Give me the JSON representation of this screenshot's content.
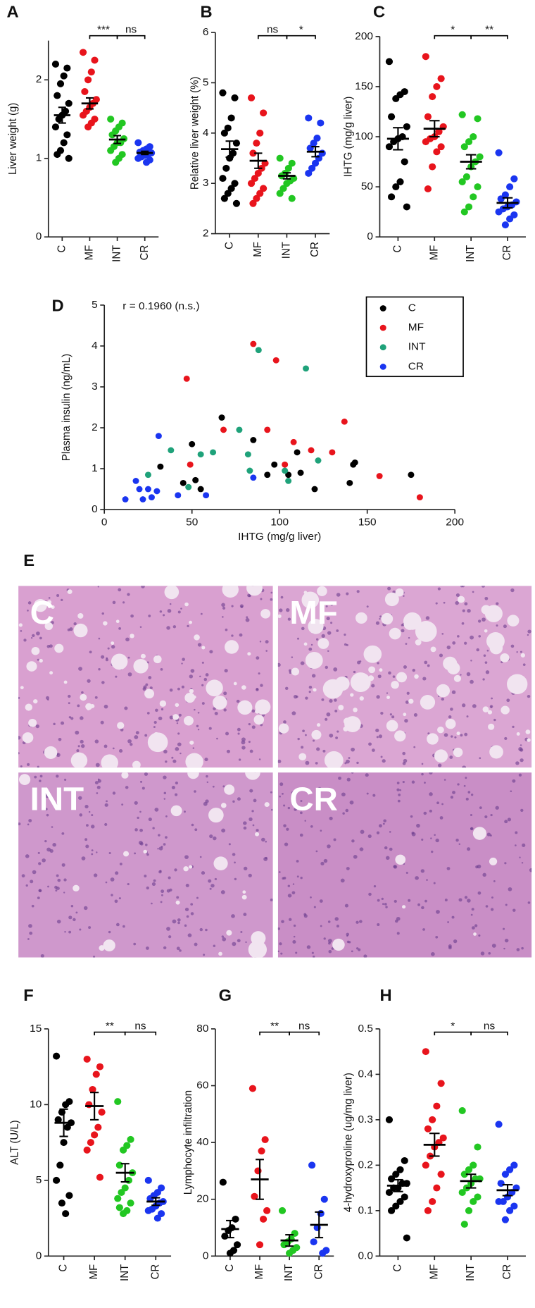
{
  "chart_data": [
    {
      "type": "strip",
      "panel": "A",
      "y_label": "Liver weight (g)",
      "categories": [
        "C",
        "MF",
        "INT",
        "CR"
      ],
      "colors": [
        "#000000",
        "#e8141c",
        "#22c722",
        "#1a35f0"
      ],
      "values": [
        [
          2.2,
          2.15,
          2.05,
          1.95,
          1.8,
          1.7,
          1.6,
          1.55,
          1.5,
          1.4,
          1.3,
          1.2,
          1.1,
          1.05,
          1.0
        ],
        [
          2.35,
          2.25,
          2.1,
          2.0,
          1.85,
          1.75,
          1.7,
          1.65,
          1.6,
          1.55,
          1.5,
          1.45,
          1.4
        ],
        [
          1.5,
          1.45,
          1.4,
          1.35,
          1.3,
          1.25,
          1.2,
          1.2,
          1.15,
          1.1,
          1.05,
          1.0,
          0.95
        ],
        [
          1.2,
          1.15,
          1.12,
          1.1,
          1.08,
          1.07,
          1.05,
          1.04,
          1.02,
          1.0,
          0.98,
          0.95
        ]
      ],
      "means": [
        1.55,
        1.7,
        1.24,
        1.07
      ],
      "sems": [
        0.1,
        0.07,
        0.05,
        0.02
      ],
      "ylim": [
        0,
        2.5
      ],
      "yticks": [
        0,
        1,
        2
      ],
      "comparisons": [
        {
          "groups": [
            1,
            2
          ],
          "label": "***"
        },
        {
          "groups": [
            2,
            3
          ],
          "label": "ns"
        }
      ]
    },
    {
      "type": "strip",
      "panel": "B",
      "y_label": "Relative liver weight (%)",
      "categories": [
        "C",
        "MF",
        "INT",
        "CR"
      ],
      "colors": [
        "#000000",
        "#e8141c",
        "#22c722",
        "#1a35f0"
      ],
      "values": [
        [
          4.8,
          4.7,
          4.3,
          4.1,
          4.0,
          3.8,
          3.6,
          3.5,
          3.3,
          3.1,
          3.0,
          2.9,
          2.8,
          2.7,
          2.6
        ],
        [
          4.7,
          4.4,
          4.0,
          3.8,
          3.6,
          3.4,
          3.3,
          3.2,
          3.1,
          3.0,
          2.9,
          2.8,
          2.7,
          2.6
        ],
        [
          3.5,
          3.4,
          3.3,
          3.2,
          3.15,
          3.1,
          3.05,
          3.0,
          2.9,
          2.8,
          2.7
        ],
        [
          4.3,
          4.2,
          3.9,
          3.8,
          3.7,
          3.6,
          3.5,
          3.4,
          3.3,
          3.2
        ]
      ],
      "means": [
        3.68,
        3.45,
        3.15,
        3.63
      ],
      "sems": [
        0.16,
        0.15,
        0.06,
        0.1
      ],
      "ylim": [
        2,
        6
      ],
      "yticks": [
        2,
        3,
        4,
        5,
        6
      ],
      "comparisons": [
        {
          "groups": [
            1,
            2
          ],
          "label": "ns"
        },
        {
          "groups": [
            2,
            3
          ],
          "label": "*"
        }
      ]
    },
    {
      "type": "strip",
      "panel": "C",
      "y_label": "IHTG (mg/g liver)",
      "categories": [
        "C",
        "MF",
        "INT",
        "CR"
      ],
      "colors": [
        "#000000",
        "#e8141c",
        "#22c722",
        "#1a35f0"
      ],
      "values": [
        [
          175,
          145,
          142,
          138,
          120,
          110,
          100,
          98,
          95,
          90,
          75,
          55,
          50,
          40,
          30
        ],
        [
          180,
          158,
          150,
          140,
          120,
          110,
          105,
          100,
          98,
          95,
          90,
          85,
          70,
          48
        ],
        [
          122,
          118,
          100,
          95,
          90,
          80,
          75,
          70,
          60,
          55,
          50,
          40,
          30,
          25
        ],
        [
          84,
          58,
          50,
          42,
          38,
          35,
          32,
          30,
          28,
          25,
          22,
          18,
          12
        ]
      ],
      "means": [
        98,
        108,
        75,
        34
      ],
      "sems": [
        11,
        8,
        7,
        5
      ],
      "ylim": [
        0,
        200
      ],
      "yticks": [
        0,
        50,
        100,
        150,
        200
      ],
      "comparisons": [
        {
          "groups": [
            1,
            2
          ],
          "label": "*"
        },
        {
          "groups": [
            2,
            3
          ],
          "label": "**"
        }
      ]
    },
    {
      "type": "scatter",
      "panel": "D",
      "annotation": "r = 0.1960 (n.s.)",
      "x_label": "IHTG (mg/g liver)",
      "y_label": "Plasma insulin (ng/mL)",
      "xlim": [
        0,
        200
      ],
      "xticks": [
        0,
        50,
        100,
        150,
        200
      ],
      "ylim": [
        0,
        5
      ],
      "yticks": [
        0,
        1,
        2,
        3,
        4,
        5
      ],
      "legend": "upper right",
      "series": [
        {
          "name": "C",
          "color": "#000000",
          "x": [
            32,
            45,
            50,
            52,
            55,
            67,
            85,
            93,
            97,
            105,
            110,
            112,
            120,
            140,
            142,
            143,
            175
          ],
          "y": [
            1.05,
            0.65,
            1.6,
            0.72,
            0.5,
            2.25,
            1.7,
            0.85,
            1.1,
            0.85,
            1.4,
            0.9,
            0.5,
            0.65,
            1.1,
            1.15,
            0.85
          ]
        },
        {
          "name": "MF",
          "color": "#e8141c",
          "x": [
            47,
            49,
            68,
            85,
            93,
            98,
            103,
            108,
            118,
            130,
            137,
            157,
            180
          ],
          "y": [
            3.2,
            1.1,
            1.95,
            4.05,
            1.95,
            3.65,
            1.1,
            1.65,
            1.45,
            1.4,
            2.15,
            0.82,
            0.3
          ]
        },
        {
          "name": "INT",
          "color": "#1fa27a",
          "x": [
            25,
            38,
            48,
            55,
            62,
            77,
            82,
            83,
            88,
            103,
            105,
            115,
            122
          ],
          "y": [
            0.85,
            1.45,
            0.55,
            1.35,
            1.4,
            1.95,
            1.35,
            0.95,
            3.9,
            0.95,
            0.7,
            3.45,
            1.2
          ]
        },
        {
          "name": "CR",
          "color": "#1a35f0",
          "x": [
            12,
            18,
            20,
            22,
            25,
            27,
            30,
            31,
            42,
            58,
            85
          ],
          "y": [
            0.25,
            0.7,
            0.5,
            0.25,
            0.5,
            0.3,
            0.45,
            1.8,
            0.35,
            0.35,
            0.78
          ]
        }
      ]
    },
    {
      "type": "strip",
      "panel": "F",
      "y_label": "ALT (U/L)",
      "categories": [
        "C",
        "MF",
        "INT",
        "CR"
      ],
      "colors": [
        "#000000",
        "#e8141c",
        "#22c722",
        "#1a35f0"
      ],
      "values": [
        [
          13.2,
          10.2,
          10,
          9.5,
          9,
          8.8,
          8.5,
          7.5,
          6,
          5,
          4,
          2.8,
          3.5
        ],
        [
          13,
          12.5,
          12,
          11,
          10,
          9.5,
          8.5,
          8,
          7.5,
          7,
          5.2
        ],
        [
          10.2,
          7.7,
          7.3,
          7,
          6,
          5.5,
          5,
          4.5,
          4.2,
          3.8,
          3.5,
          3,
          2.8,
          3.2
        ],
        [
          5,
          4.5,
          4.2,
          4,
          3.8,
          3.6,
          3.5,
          3.3,
          3.1,
          3,
          2.8,
          2.5
        ]
      ],
      "means": [
        8.8,
        9.9,
        5.5,
        3.6
      ],
      "sems": [
        0.9,
        0.9,
        0.6,
        0.25
      ],
      "ylim": [
        0,
        15
      ],
      "yticks": [
        0,
        5,
        10,
        15
      ],
      "comparisons": [
        {
          "groups": [
            1,
            2
          ],
          "label": "**"
        },
        {
          "groups": [
            2,
            3
          ],
          "label": "ns"
        }
      ]
    },
    {
      "type": "strip",
      "panel": "G",
      "y_label": "Lymphocyte infiltration",
      "categories": [
        "C",
        "MF",
        "INT",
        "CR"
      ],
      "colors": [
        "#000000",
        "#e8141c",
        "#22c722",
        "#1a35f0"
      ],
      "values": [
        [
          26,
          13,
          10,
          9,
          7,
          4,
          2,
          1
        ],
        [
          59,
          41,
          37,
          30,
          21,
          16,
          13,
          4
        ],
        [
          16,
          8,
          6,
          5,
          4,
          3,
          2,
          1
        ],
        [
          32,
          20,
          15,
          10,
          5,
          2,
          1
        ]
      ],
      "means": [
        9.5,
        27,
        5.5,
        11
      ],
      "sems": [
        3,
        7,
        2,
        4.5
      ],
      "ylim": [
        0,
        80
      ],
      "yticks": [
        0,
        20,
        40,
        60,
        80
      ],
      "comparisons": [
        {
          "groups": [
            1,
            2
          ],
          "label": "**"
        },
        {
          "groups": [
            2,
            3
          ],
          "label": "ns"
        }
      ]
    },
    {
      "type": "strip",
      "panel": "H",
      "y_label": "4-hydroxyproline (ug/mg liver)",
      "categories": [
        "C",
        "MF",
        "INT",
        "CR"
      ],
      "colors": [
        "#000000",
        "#e8141c",
        "#22c722",
        "#1a35f0"
      ],
      "values": [
        [
          0.3,
          0.21,
          0.19,
          0.18,
          0.17,
          0.16,
          0.16,
          0.15,
          0.15,
          0.14,
          0.13,
          0.12,
          0.11,
          0.1,
          0.04
        ],
        [
          0.45,
          0.38,
          0.33,
          0.3,
          0.28,
          0.26,
          0.25,
          0.24,
          0.22,
          0.2,
          0.18,
          0.15,
          0.12,
          0.1
        ],
        [
          0.32,
          0.24,
          0.2,
          0.19,
          0.18,
          0.17,
          0.17,
          0.16,
          0.15,
          0.14,
          0.13,
          0.12,
          0.1,
          0.07
        ],
        [
          0.29,
          0.2,
          0.19,
          0.18,
          0.16,
          0.15,
          0.14,
          0.13,
          0.12,
          0.12,
          0.11,
          0.1,
          0.08
        ]
      ],
      "means": [
        0.155,
        0.245,
        0.165,
        0.145
      ],
      "sems": [
        0.013,
        0.025,
        0.015,
        0.012
      ],
      "ylim": [
        0,
        0.5
      ],
      "yticks": [
        {
          "value": 0,
          "label": "0.0"
        },
        0.1,
        0.2,
        0.3,
        0.4,
        0.5
      ],
      "comparisons": [
        {
          "groups": [
            1,
            2
          ],
          "label": "*"
        },
        {
          "groups": [
            2,
            3
          ],
          "label": "ns"
        }
      ]
    }
  ],
  "histology": {
    "panel": "E",
    "images": [
      {
        "label": "C"
      },
      {
        "label": "MF"
      },
      {
        "label": "INT"
      },
      {
        "label": "CR"
      }
    ]
  }
}
